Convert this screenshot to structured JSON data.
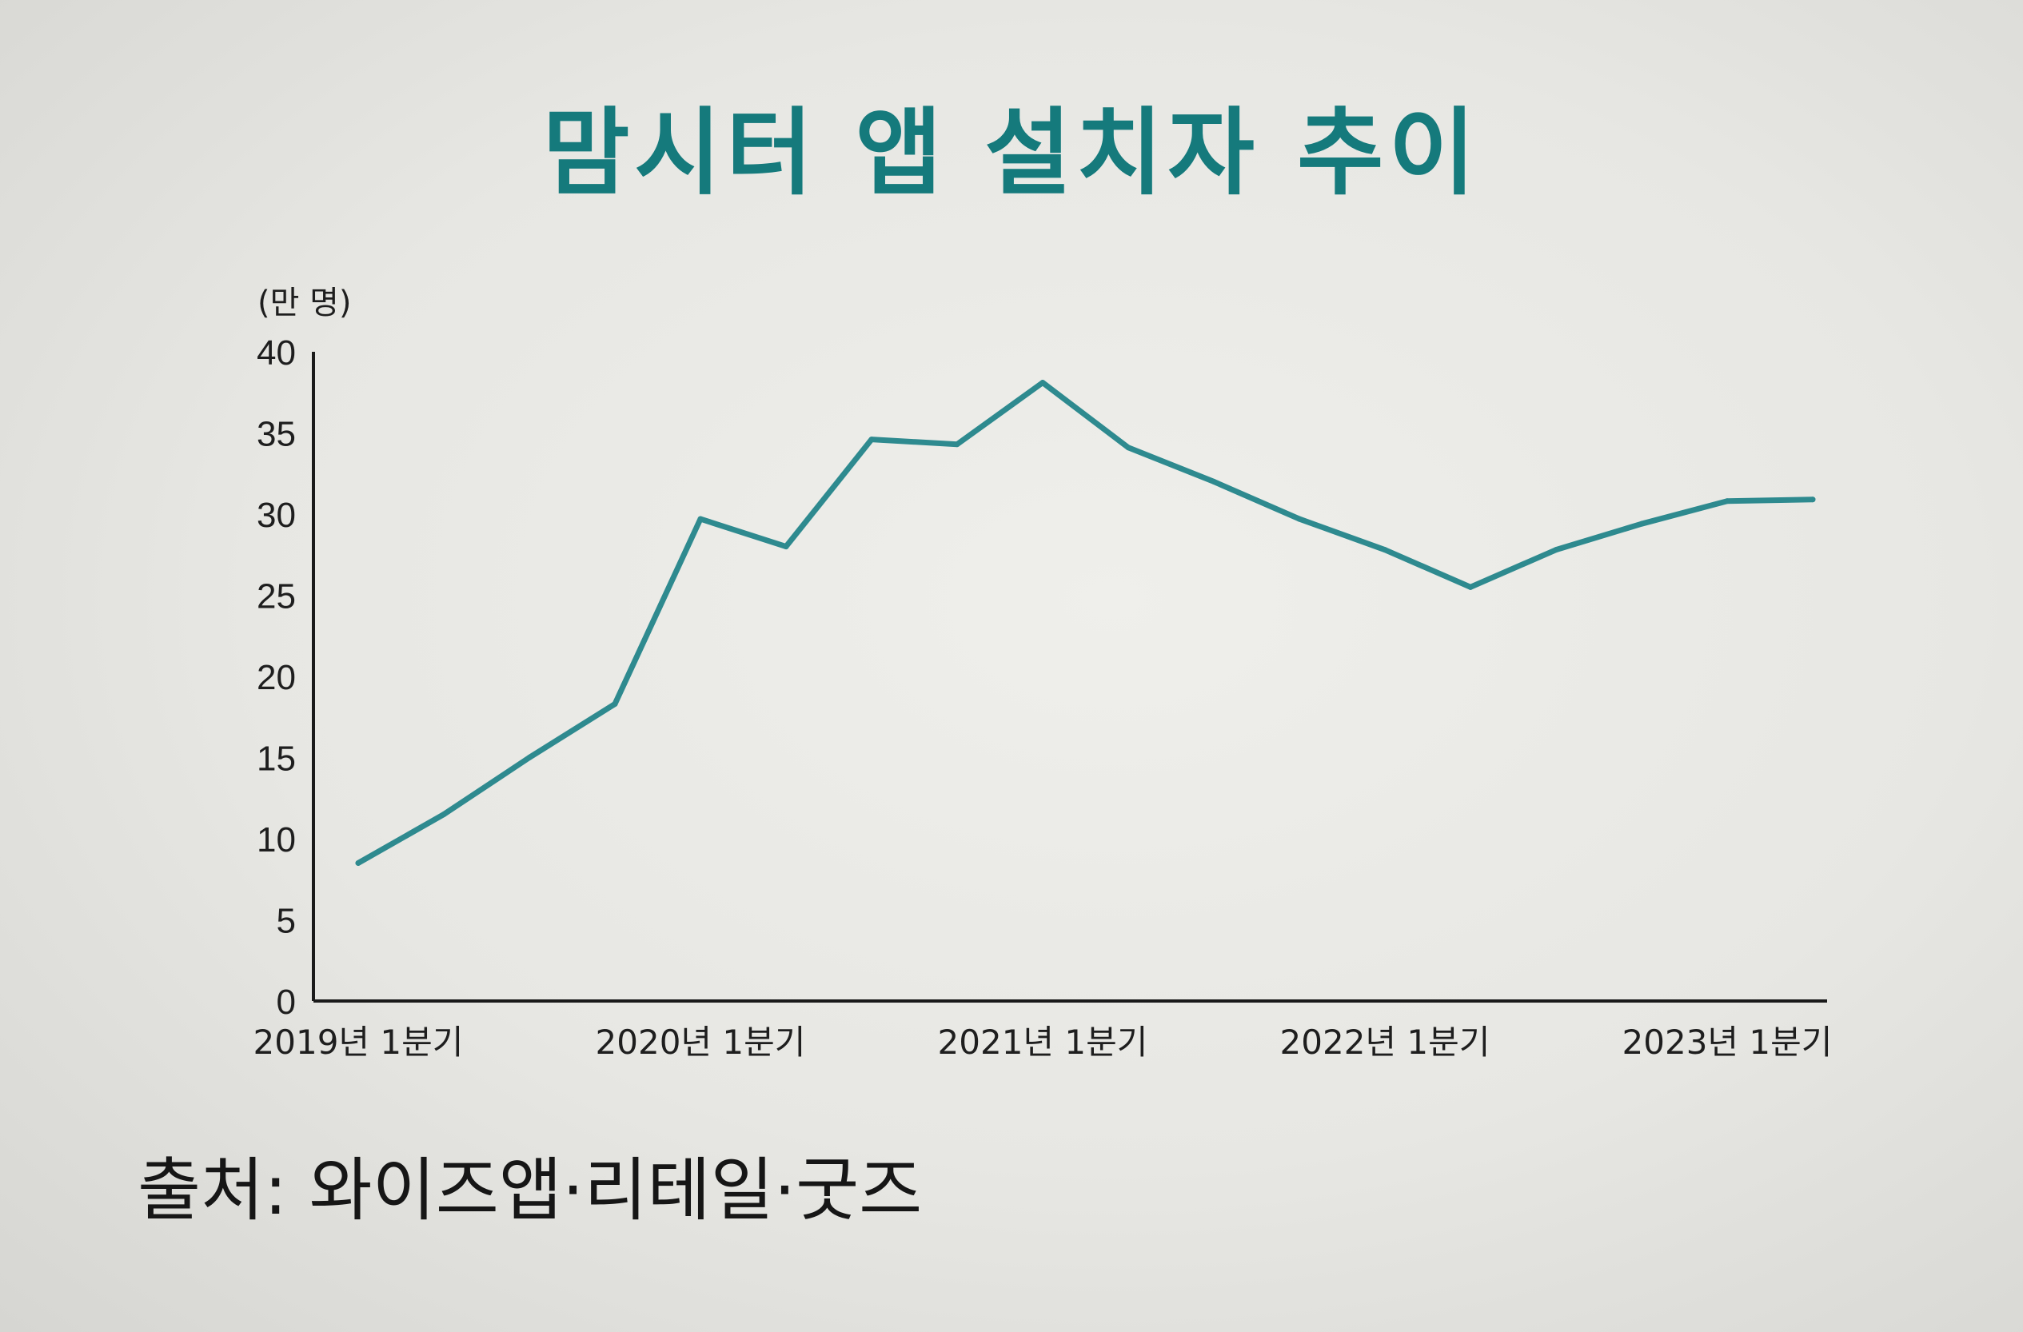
{
  "page": {
    "title": "맘시터 앱 설치자 추이",
    "source": "출처: 와이즈앱·리테일·굿즈"
  },
  "chart_data": {
    "type": "line",
    "title": "맘시터 앱 설치자 추이",
    "ylabel": "(만 명)",
    "xlabel": "",
    "ylim": [
      0,
      40
    ],
    "yticks": [
      0,
      5,
      10,
      15,
      20,
      25,
      30,
      35,
      40
    ],
    "x_tick_labels": [
      "2019년 1분기",
      "2020년 1분기",
      "2021년 1분기",
      "2022년 1분기",
      "2023년 1분기"
    ],
    "x": [
      "2019년 1분기",
      "2019년 2분기",
      "2019년 3분기",
      "2019년 4분기",
      "2020년 1분기",
      "2020년 2분기",
      "2020년 3분기",
      "2020년 4분기",
      "2021년 1분기",
      "2021년 2분기",
      "2021년 3분기",
      "2021년 4분기",
      "2022년 1분기",
      "2022년 2분기",
      "2022년 3분기",
      "2022년 4분기",
      "2023년 1분기",
      "2023년 2분기"
    ],
    "series": [
      {
        "values": [
          8.5,
          11.5,
          15,
          18.3,
          29.7,
          28,
          34.6,
          34.3,
          38.1,
          34.1,
          32,
          29.7,
          27.8,
          25.5,
          27.8,
          29.4,
          30.8,
          30.9
        ]
      }
    ],
    "grid": false,
    "legend": "none",
    "colors": {
      "line": "#2e8a8f",
      "title": "#157a7c",
      "axis": "#1a1a1a"
    }
  }
}
